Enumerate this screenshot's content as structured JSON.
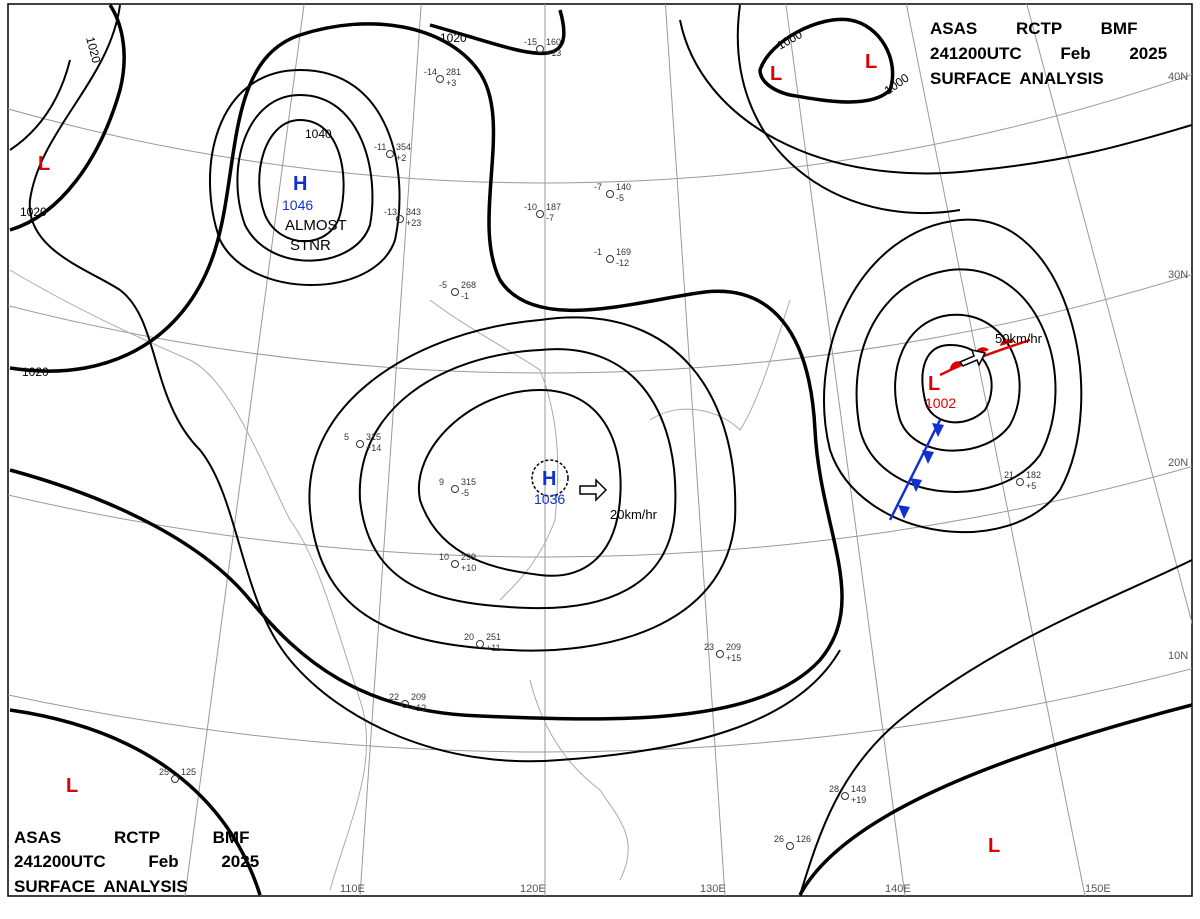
{
  "header_top": [
    "ASAS RCTP BMF",
    "241200UTC Feb 2025",
    "SURFACE ANALYSIS"
  ],
  "header_bottom": [
    "ASAS RCTP BMF",
    "241200UTC Feb 2025",
    "SURFACE ANALYSIS"
  ],
  "pressure_centers": [
    {
      "symbol": "H",
      "value": "1046"
    },
    {
      "symbol": "H",
      "value": "1036"
    },
    {
      "symbol": "L",
      "value": "1002"
    }
  ],
  "low_symbols": [
    "L",
    "L",
    "L",
    "L",
    "L",
    "L"
  ],
  "annotations": [
    "ALMOST",
    "STNR",
    "20km/hr",
    "50km/hr"
  ],
  "isobar_labels": [
    "1020",
    "1020",
    "1020",
    "1040",
    "1020",
    "1000",
    "1000"
  ],
  "latitude_labels": [
    "40N",
    "30N",
    "20N",
    "10N"
  ],
  "longitude_labels": [
    "110E",
    "120E",
    "130E",
    "140E",
    "150E"
  ],
  "stations": [
    {
      "temp": "-15",
      "pressure": "160",
      "tendency": "+13"
    },
    {
      "temp": "-14",
      "pressure": "281",
      "tendency": "+3"
    },
    {
      "temp": "-11",
      "pressure": "354",
      "tendency": "+2"
    },
    {
      "temp": "-13",
      "pressure": "343",
      "tendency": "+23"
    },
    {
      "temp": "-10",
      "pressure": "187",
      "tendency": "-7"
    },
    {
      "temp": "-7",
      "pressure": "140",
      "tendency": "-5"
    },
    {
      "temp": "-1",
      "pressure": "169",
      "tendency": "-12"
    },
    {
      "temp": "-5",
      "pressure": "268",
      "tendency": "-1"
    },
    {
      "temp": "5",
      "pressure": "315",
      "tendency": "+14"
    },
    {
      "temp": "9",
      "pressure": "315",
      "tendency": "-5"
    },
    {
      "temp": "10",
      "pressure": "299",
      "tendency": "+10"
    },
    {
      "temp": "20",
      "pressure": "251",
      "tendency": "+11"
    },
    {
      "temp": "22",
      "pressure": "209",
      "tendency": "+12"
    },
    {
      "temp": "23",
      "pressure": "209",
      "tendency": "+15"
    },
    {
      "temp": "21",
      "pressure": "182",
      "tendency": "+5"
    },
    {
      "temp": "28",
      "pressure": "143",
      "tendency": "+19"
    },
    {
      "temp": "26",
      "pressure": "126",
      "tendency": ""
    },
    {
      "temp": "25",
      "pressure": "125",
      "tendency": ""
    }
  ]
}
